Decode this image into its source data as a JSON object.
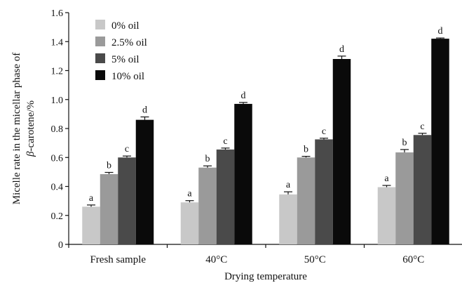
{
  "chart_data": {
    "type": "bar",
    "xlabel": "Drying temperature",
    "ylabel_line1": "Micelle rate in the micellar phase of",
    "ylabel_line2_symbol": "β",
    "ylabel_line2_rest": "-carotene/%",
    "ylim": [
      0,
      1.6
    ],
    "yticks": [
      "0",
      "0.2",
      "0.4",
      "0.6",
      "0.8",
      "1.0",
      "1.2",
      "1.4",
      "1.6"
    ],
    "categories": [
      "Fresh sample",
      "40°C",
      "50°C",
      "60°C"
    ],
    "legend_position": "top-left",
    "series": [
      {
        "name": "0% oil",
        "color": "#c8c8c8",
        "values": [
          0.26,
          0.29,
          0.345,
          0.395
        ],
        "errors": [
          0.012,
          0.012,
          0.018,
          0.012
        ],
        "labels": [
          "a",
          "a",
          "a",
          "a"
        ]
      },
      {
        "name": "2.5% oil",
        "color": "#9a9a9a",
        "values": [
          0.485,
          0.53,
          0.6,
          0.635
        ],
        "errors": [
          0.012,
          0.012,
          0.008,
          0.02
        ],
        "labels": [
          "b",
          "b",
          "b",
          "b"
        ]
      },
      {
        "name": "5% oil",
        "color": "#4a4a4a",
        "values": [
          0.6,
          0.655,
          0.725,
          0.755
        ],
        "errors": [
          0.01,
          0.01,
          0.008,
          0.012
        ],
        "labels": [
          "c",
          "c",
          "c",
          "c"
        ]
      },
      {
        "name": "10% oil",
        "color": "#0a0a0a",
        "values": [
          0.86,
          0.97,
          1.28,
          1.42
        ],
        "errors": [
          0.02,
          0.01,
          0.02,
          0.005
        ],
        "labels": [
          "d",
          "d",
          "d",
          "d"
        ]
      }
    ]
  }
}
